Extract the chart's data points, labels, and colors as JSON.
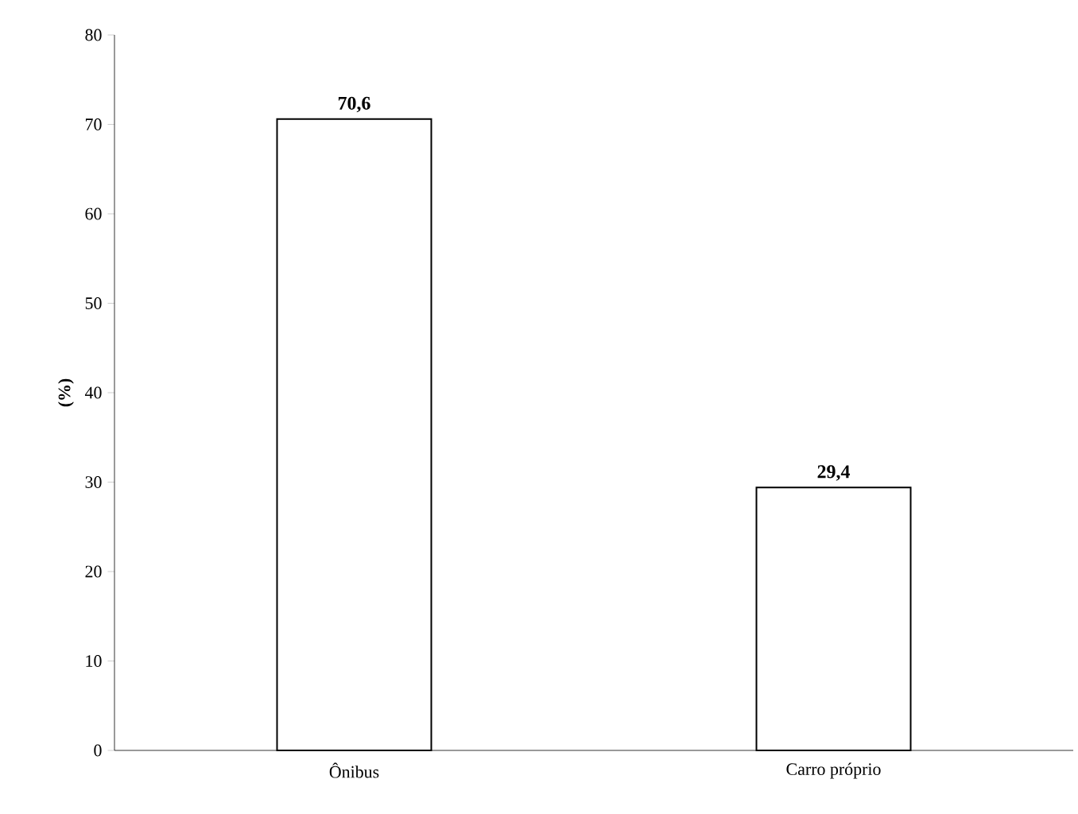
{
  "chart_data": {
    "type": "bar",
    "ylabel": "(%)",
    "categories": [
      "Ônibus",
      "Carro próprio"
    ],
    "values": [
      70.6,
      29.4
    ],
    "value_labels": [
      "70,6",
      "29,4"
    ],
    "color": "#000000",
    "ylim": [
      0,
      80
    ],
    "yticks": [
      0,
      10,
      20,
      30,
      40,
      50,
      60,
      70,
      80
    ],
    "grid": false
  }
}
